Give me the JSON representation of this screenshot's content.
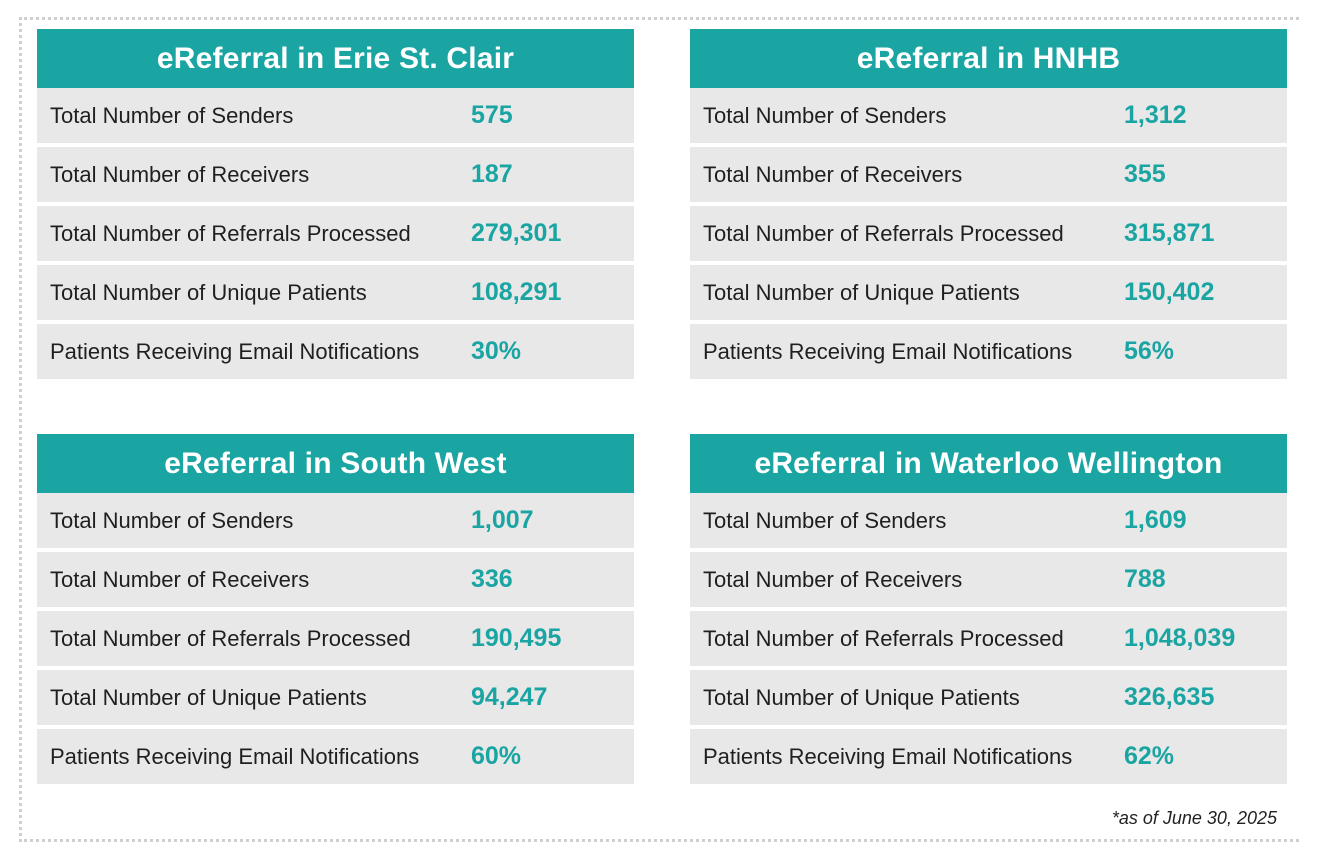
{
  "panels": [
    {
      "title": "eReferral in Erie St. Clair",
      "rows": [
        {
          "label": "Total Number of Senders",
          "value": "575"
        },
        {
          "label": "Total Number of Receivers",
          "value": "187"
        },
        {
          "label": "Total Number of Referrals Processed",
          "value": "279,301"
        },
        {
          "label": "Total Number of Unique Patients",
          "value": "108,291"
        },
        {
          "label": "Patients Receiving Email Notifications",
          "value": "30%"
        }
      ]
    },
    {
      "title": "eReferral in HNHB",
      "rows": [
        {
          "label": "Total Number of Senders",
          "value": "1,312"
        },
        {
          "label": "Total Number of Receivers",
          "value": "355"
        },
        {
          "label": "Total Number of Referrals Processed",
          "value": "315,871"
        },
        {
          "label": "Total Number of Unique Patients",
          "value": "150,402"
        },
        {
          "label": "Patients Receiving Email Notifications",
          "value": "56%"
        }
      ]
    },
    {
      "title": "eReferral in South West",
      "rows": [
        {
          "label": "Total Number of Senders",
          "value": "1,007"
        },
        {
          "label": "Total Number of Receivers",
          "value": "336"
        },
        {
          "label": "Total Number of Referrals Processed",
          "value": "190,495"
        },
        {
          "label": "Total Number of Unique Patients",
          "value": "94,247"
        },
        {
          "label": "Patients Receiving Email Notifications",
          "value": "60%"
        }
      ]
    },
    {
      "title": "eReferral in Waterloo Wellington",
      "rows": [
        {
          "label": "Total Number of Senders",
          "value": "1,609"
        },
        {
          "label": "Total Number of Receivers",
          "value": "788"
        },
        {
          "label": "Total Number of Referrals Processed",
          "value": "1,048,039"
        },
        {
          "label": "Total Number of Unique Patients",
          "value": "326,635"
        },
        {
          "label": "Patients Receiving Email Notifications",
          "value": "62%"
        }
      ]
    }
  ],
  "footnote": "*as of June 30, 2025",
  "colors": {
    "accent": "#1aa5a3",
    "row_background": "#e8e8e8",
    "label_text": "#1f1f1f"
  }
}
